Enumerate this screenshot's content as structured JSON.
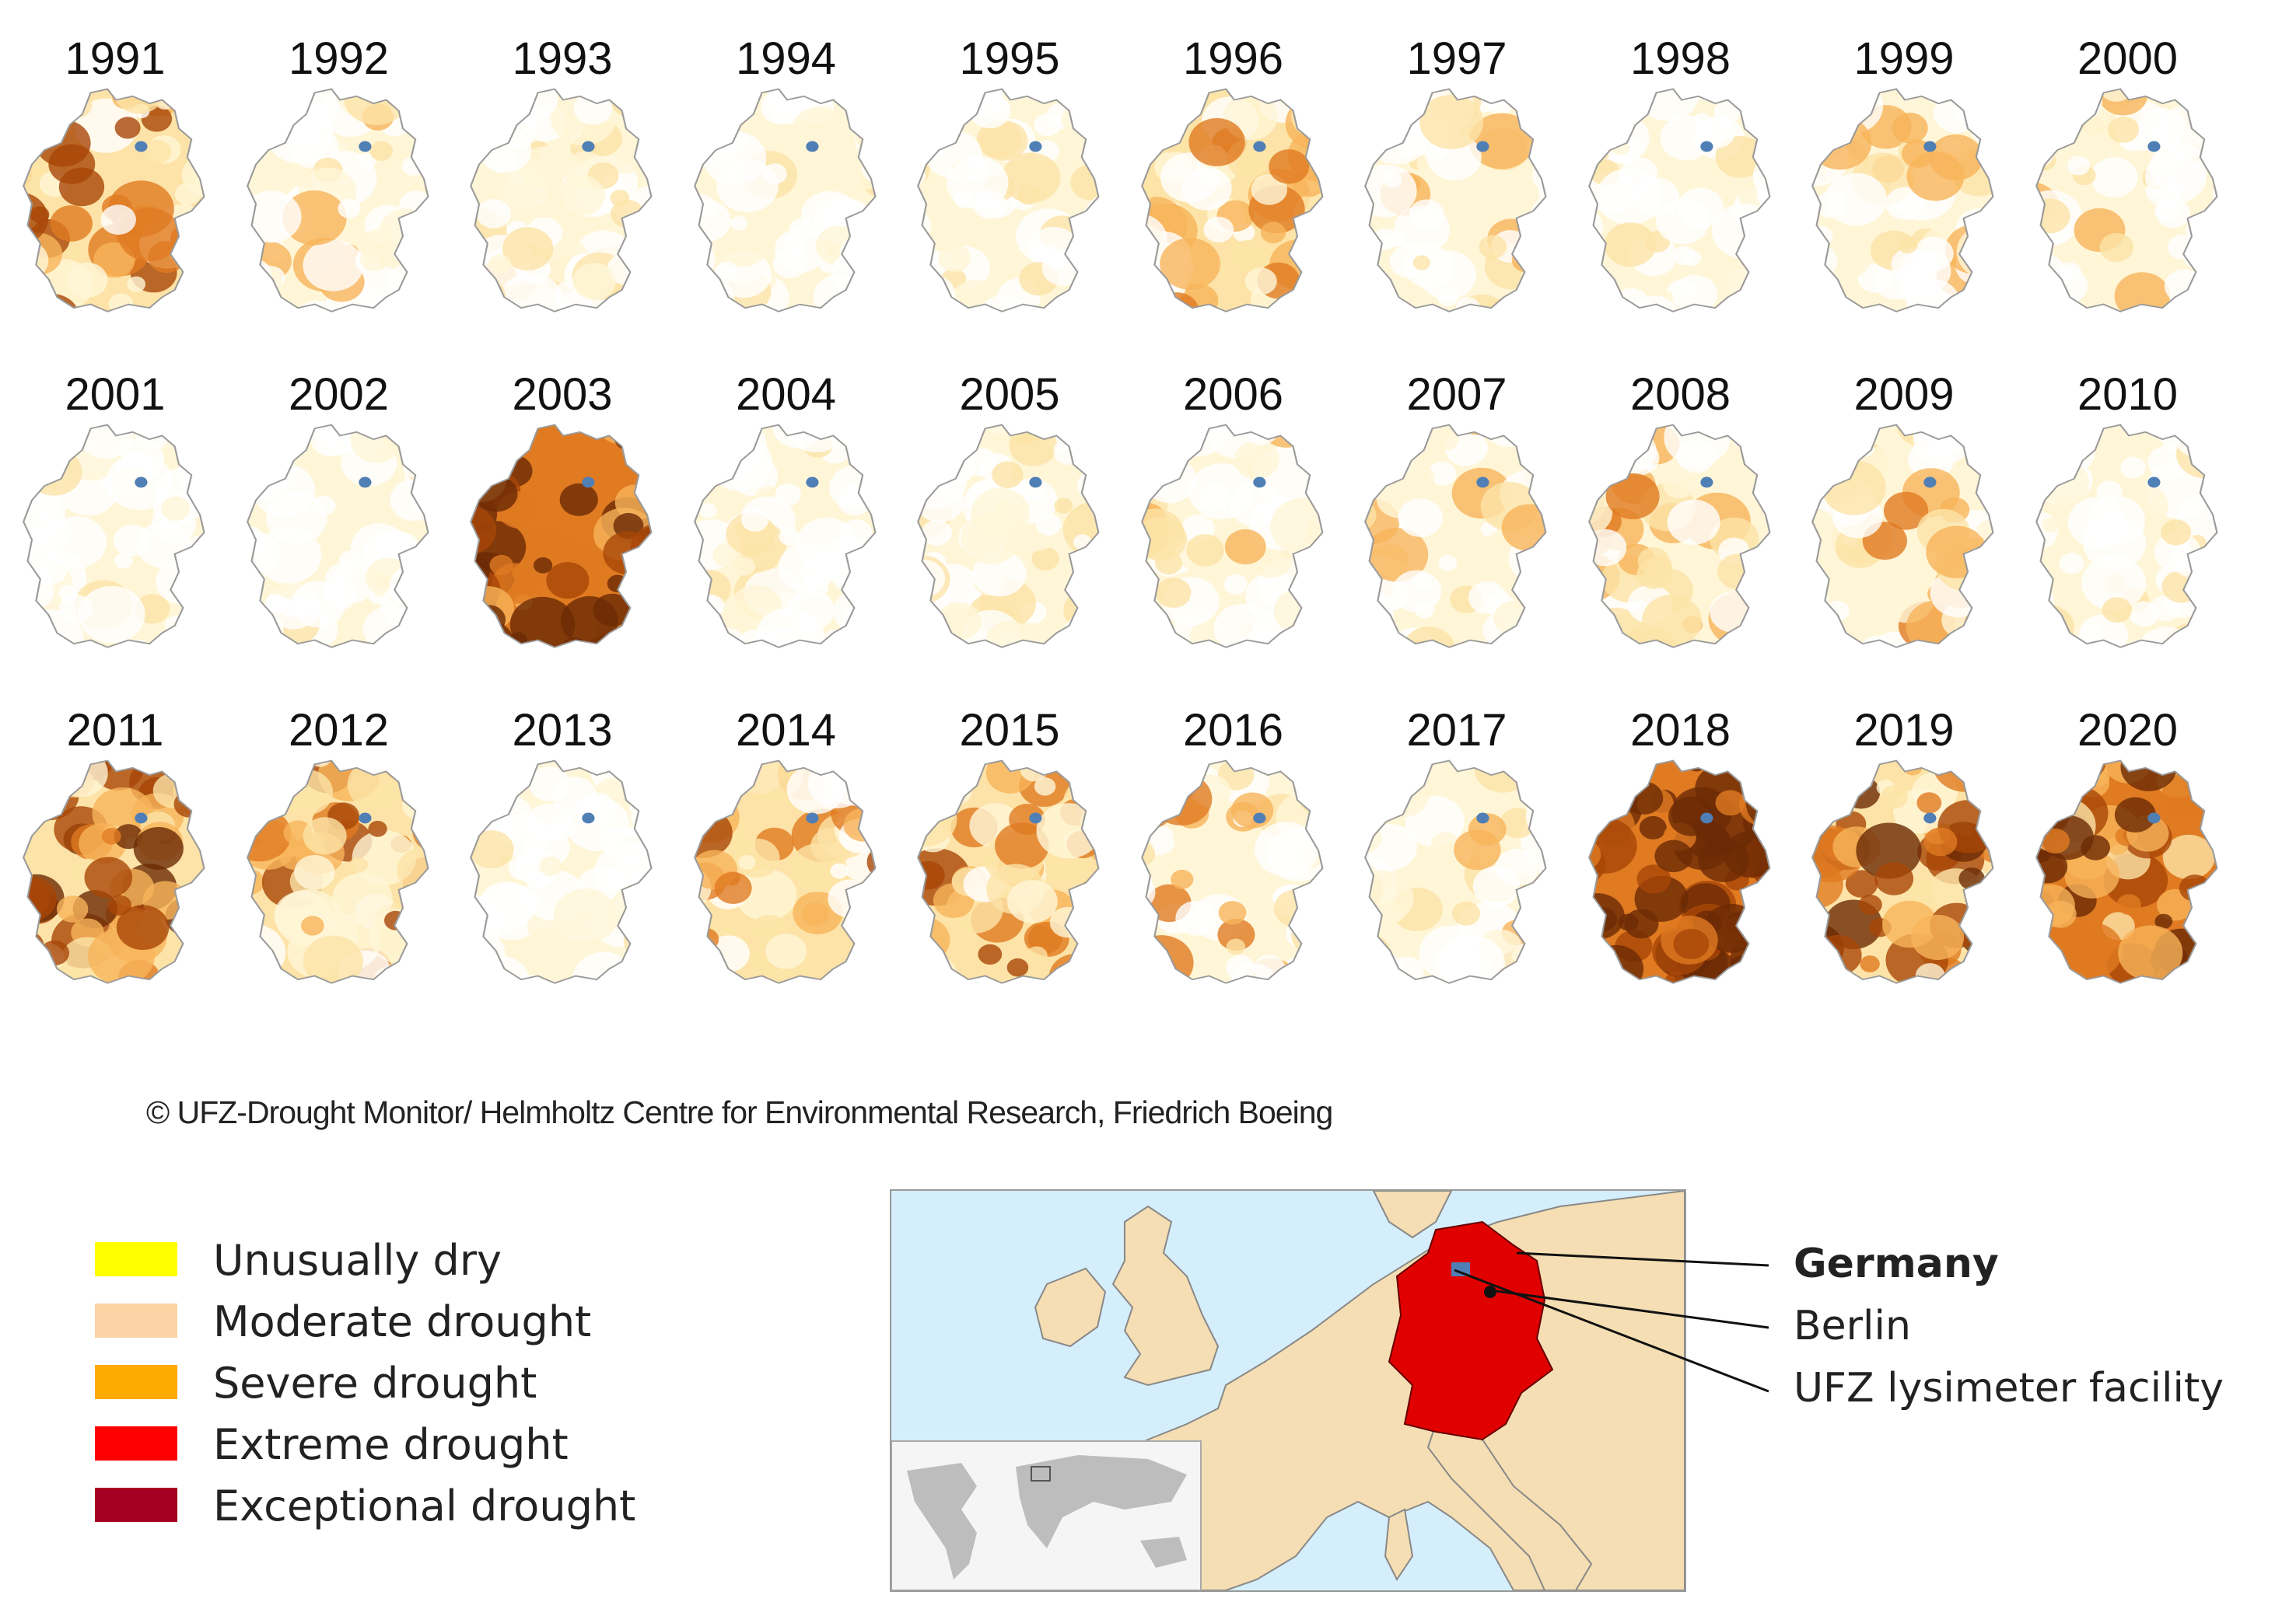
{
  "years": [
    {
      "year": "1991",
      "severity": 0.45
    },
    {
      "year": "1992",
      "severity": 0.2
    },
    {
      "year": "1993",
      "severity": 0.1
    },
    {
      "year": "1994",
      "severity": 0.05
    },
    {
      "year": "1995",
      "severity": 0.05
    },
    {
      "year": "1996",
      "severity": 0.35
    },
    {
      "year": "1997",
      "severity": 0.15
    },
    {
      "year": "1998",
      "severity": 0.05
    },
    {
      "year": "1999",
      "severity": 0.2
    },
    {
      "year": "2000",
      "severity": 0.15
    },
    {
      "year": "2001",
      "severity": 0.0
    },
    {
      "year": "2002",
      "severity": 0.0
    },
    {
      "year": "2003",
      "severity": 0.85
    },
    {
      "year": "2004",
      "severity": 0.03
    },
    {
      "year": "2005",
      "severity": 0.03
    },
    {
      "year": "2006",
      "severity": 0.15
    },
    {
      "year": "2007",
      "severity": 0.15
    },
    {
      "year": "2008",
      "severity": 0.25
    },
    {
      "year": "2009",
      "severity": 0.3
    },
    {
      "year": "2010",
      "severity": 0.08
    },
    {
      "year": "2011",
      "severity": 0.6
    },
    {
      "year": "2012",
      "severity": 0.4
    },
    {
      "year": "2013",
      "severity": 0.05
    },
    {
      "year": "2014",
      "severity": 0.4
    },
    {
      "year": "2015",
      "severity": 0.45
    },
    {
      "year": "2016",
      "severity": 0.3
    },
    {
      "year": "2017",
      "severity": 0.2
    },
    {
      "year": "2018",
      "severity": 0.95
    },
    {
      "year": "2019",
      "severity": 0.6
    },
    {
      "year": "2020",
      "severity": 0.75
    }
  ],
  "copyright": "© UFZ-Drought Monitor/ Helmholtz Centre for Environmental Research, Friedrich Boeing",
  "legend": [
    {
      "label": "Unusually dry",
      "color": "#ffff00"
    },
    {
      "label": "Moderate drought",
      "color": "#fcd3a4"
    },
    {
      "label": "Severe drought",
      "color": "#ffaa00"
    },
    {
      "label": "Extreme drought",
      "color": "#ff0000"
    },
    {
      "label": "Exceptional drought",
      "color": "#a50021"
    }
  ],
  "callouts": {
    "germany": "Germany",
    "berlin": "Berlin",
    "lysimeter": "UFZ lysimeter facility"
  },
  "colors": {
    "ramp": [
      "#ffffff",
      "#fff6d8",
      "#fde3a7",
      "#f7b45a",
      "#e07b22",
      "#a84608",
      "#6b2a05"
    ],
    "marker": "#4f7fb5",
    "germany_fill": "#e10000",
    "land": "#f5deb3",
    "sea": "#d5eefb",
    "outline": "#9a9a9a"
  }
}
